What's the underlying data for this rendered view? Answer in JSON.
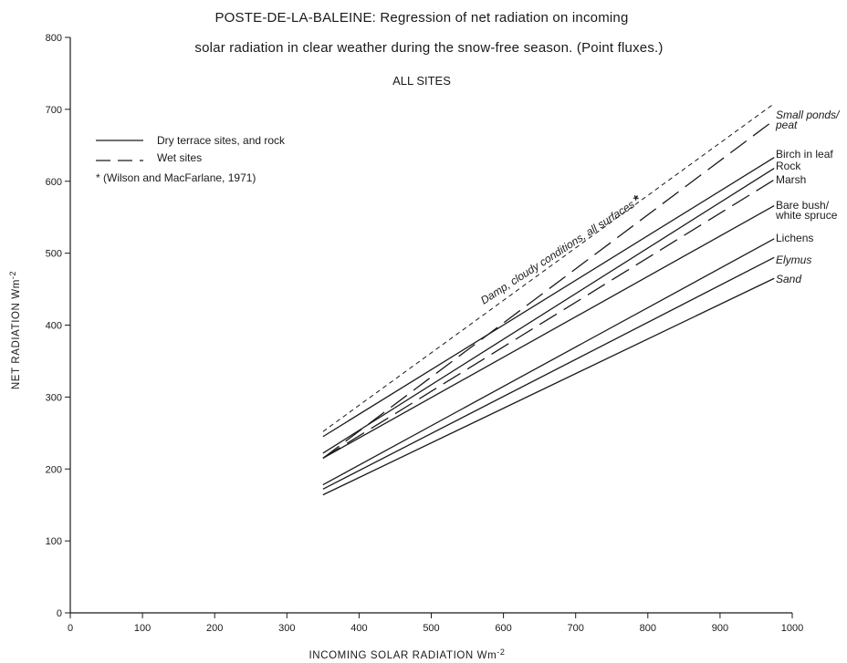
{
  "chart_data": {
    "type": "line",
    "title_parts": [
      "POSTE-DE-LA-BALEINE",
      ": Regression of net radiation on incoming"
    ],
    "title_line2": "solar radiation in clear weather during the snow-free season. (Point fluxes.)",
    "subtitle": "ALL SITES",
    "xlabel": "INCOMING SOLAR RADIATION  Wm",
    "xlabel_exp": "-2",
    "ylabel": "NET RADIATION  Wm",
    "ylabel_exp": "-2",
    "xlim": [
      0,
      1000
    ],
    "ylim": [
      0,
      800
    ],
    "xticks": [
      0,
      100,
      200,
      300,
      400,
      500,
      600,
      700,
      800,
      900,
      1000
    ],
    "yticks": [
      0,
      100,
      200,
      300,
      400,
      500,
      600,
      700,
      800
    ],
    "grid": false,
    "legend_position": "top-left",
    "legend": [
      {
        "label": "Dry terrace sites, and rock",
        "style": "solid"
      },
      {
        "label": "Wet sites",
        "style": "long-dash"
      },
      {
        "label": "* (Wilson and MacFarlane, 1971)",
        "style": "none"
      }
    ],
    "series": [
      {
        "name": "Small ponds/ peat",
        "style": "long-dash",
        "x": [
          350,
          975
        ],
        "y": [
          215,
          685
        ]
      },
      {
        "name": "Birch in leaf",
        "style": "solid",
        "x": [
          350,
          975
        ],
        "y": [
          245,
          633
        ]
      },
      {
        "name": "Rock",
        "style": "solid",
        "x": [
          350,
          975
        ],
        "y": [
          222,
          618
        ]
      },
      {
        "name": "Marsh",
        "style": "long-dash",
        "x": [
          350,
          975
        ],
        "y": [
          215,
          602
        ]
      },
      {
        "name": "Bare bush/ white spruce",
        "style": "solid",
        "x": [
          350,
          975
        ],
        "y": [
          215,
          566
        ]
      },
      {
        "name": "Lichens",
        "style": "solid",
        "x": [
          350,
          975
        ],
        "y": [
          178,
          520
        ]
      },
      {
        "name": "Elymus",
        "style": "solid",
        "x": [
          350,
          975
        ],
        "y": [
          172,
          494
        ]
      },
      {
        "name": "Sand",
        "style": "solid",
        "x": [
          350,
          975
        ],
        "y": [
          164,
          465
        ]
      },
      {
        "name": "Damp, cloudy conditions, all surfaces*",
        "style": "short-dash",
        "x": [
          350,
          975
        ],
        "y": [
          252,
          708
        ]
      }
    ],
    "end_labels": [
      {
        "lines": [
          "Small ponds/",
          "peat"
        ],
        "italic": true
      },
      {
        "lines": [
          "Birch in leaf"
        ],
        "italic": false
      },
      {
        "lines": [
          "Rock"
        ],
        "italic": false
      },
      {
        "lines": [
          "Marsh"
        ],
        "italic": false
      },
      {
        "lines": [
          "Bare bush/",
          "white spruce"
        ],
        "italic": false
      },
      {
        "lines": [
          "Lichens"
        ],
        "italic": false
      },
      {
        "lines": [
          "Elymus"
        ],
        "italic": true
      },
      {
        "lines": [
          "Sand"
        ],
        "italic": true
      }
    ],
    "annotation": "Damp, cloudy conditions, all surfaces",
    "annotation_star": "*"
  }
}
